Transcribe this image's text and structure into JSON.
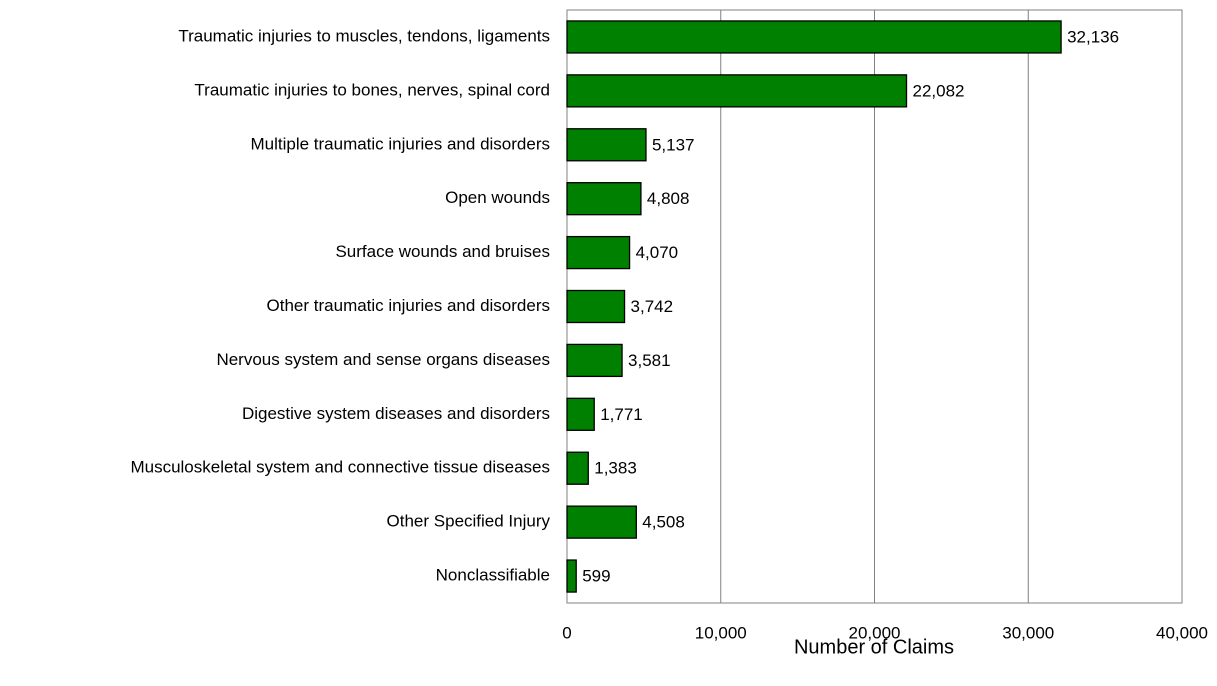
{
  "chart_data": {
    "type": "bar",
    "orientation": "horizontal",
    "x_label": "Number of Claims",
    "categories": [
      "Traumatic injuries to muscles, tendons, ligaments",
      "Traumatic injuries to bones, nerves, spinal cord",
      "Multiple traumatic injuries and disorders",
      "Open wounds",
      "Surface wounds and bruises",
      "Other traumatic injuries and disorders",
      "Nervous system and sense organs diseases",
      "Digestive system diseases and disorders",
      "Musculoskeletal system and connective tissue diseases",
      "Other Specified Injury",
      "Nonclassifiable"
    ],
    "values": [
      32136,
      22082,
      5137,
      4808,
      4070,
      3742,
      3581,
      1771,
      1383,
      4508,
      599
    ],
    "value_labels": [
      "32,136",
      "22,082",
      "5,137",
      "4,808",
      "4,070",
      "3,742",
      "3,581",
      "1,771",
      "1,383",
      "4,508",
      "599"
    ],
    "color": "#008000",
    "xlim": [
      0,
      40000
    ],
    "xticks": [
      0,
      {
        "value": 10000,
        "label": "10,000"
      },
      {
        "value": 20000,
        "label": "20,000"
      },
      {
        "value": 30000,
        "label": "30,000"
      },
      {
        "value": 40000,
        "label": "40,000"
      }
    ],
    "grid": true
  }
}
